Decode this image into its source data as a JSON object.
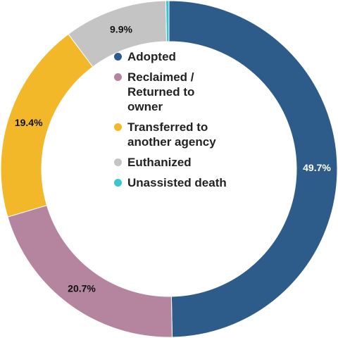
{
  "chart_data": {
    "type": "pie",
    "variant": "donut",
    "categories": [
      "Adopted",
      "Reclaimed /\nReturned to\nowner",
      "Transferred to\nanother agency",
      "Euthanized",
      "Unassisted death"
    ],
    "values": [
      49.7,
      20.7,
      19.4,
      9.9,
      0.3
    ],
    "value_labels": [
      "49.7%",
      "20.7%",
      "19.4%",
      "9.9%",
      ""
    ],
    "colors": [
      "#2e5c8a",
      "#b5849f",
      "#f2b829",
      "#c4c4c4",
      "#3ec6cf"
    ],
    "label_colors": [
      "#ffffff",
      "#111111",
      "#111111",
      "#111111",
      "#111111"
    ],
    "legend_position": "center"
  }
}
